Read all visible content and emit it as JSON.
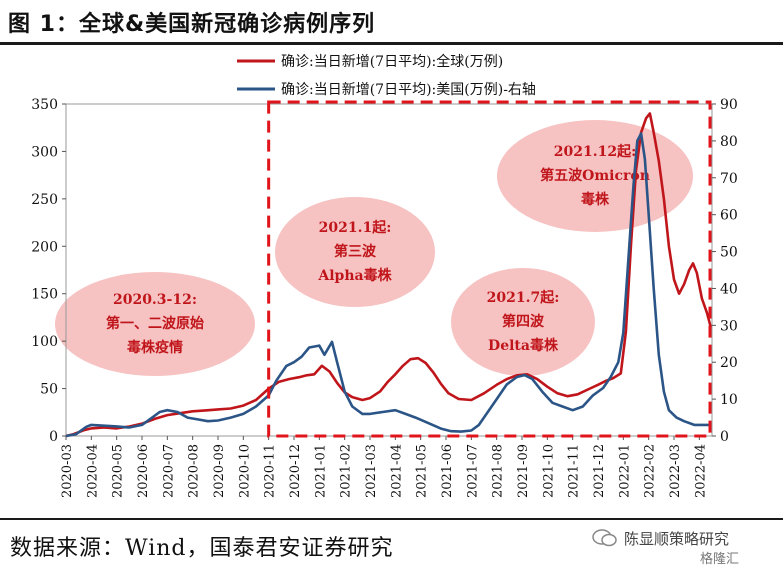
{
  "figure": {
    "title": "图 1：全球&美国新冠确诊病例序列",
    "source": "数据来源：Wind，国泰君安证券研究",
    "watermark": "陈显顺策略研究",
    "watermark_sub": "格隆汇"
  },
  "colors": {
    "global": "#c0161b",
    "us": "#2b5587",
    "annotation_fill": "#f4b7b7",
    "annotation_text": "#c0161b",
    "dashed_box": "#e0141a"
  },
  "chart_data": {
    "type": "line",
    "x_ticks": [
      "2020-03",
      "2020-04",
      "2020-05",
      "2020-06",
      "2020-07",
      "2020-08",
      "2020-09",
      "2020-10",
      "2020-11",
      "2020-12",
      "2021-01",
      "2021-02",
      "2021-03",
      "2021-04",
      "2021-05",
      "2021-06",
      "2021-07",
      "2021-08",
      "2021-09",
      "2021-10",
      "2021-11",
      "2021-12",
      "2022-01",
      "2022-02",
      "2022-03",
      "2022-04"
    ],
    "y_left": {
      "min": 0,
      "max": 350,
      "ticks": [
        "0",
        "50",
        "100",
        "150",
        "200",
        "250",
        "300",
        "350"
      ]
    },
    "y_right": {
      "min": 0,
      "max": 90,
      "ticks": [
        "0",
        "10",
        "20",
        "30",
        "40",
        "50",
        "60",
        "70",
        "80",
        "90"
      ]
    },
    "legend": {
      "position": "top-right"
    },
    "series": [
      {
        "name": "确诊:当日新增(7日平均):全球(万例)",
        "axis": "left",
        "points": [
          [
            0,
            0
          ],
          [
            0.3,
            2
          ],
          [
            0.7,
            6
          ],
          [
            1,
            8
          ],
          [
            1.5,
            9
          ],
          [
            2,
            8
          ],
          [
            2.5,
            10
          ],
          [
            3,
            13
          ],
          [
            3.5,
            18
          ],
          [
            4,
            22
          ],
          [
            4.5,
            24
          ],
          [
            5,
            26
          ],
          [
            5.5,
            27
          ],
          [
            6,
            28
          ],
          [
            6.5,
            29
          ],
          [
            7,
            32
          ],
          [
            7.5,
            38
          ],
          [
            8,
            50
          ],
          [
            8.4,
            57
          ],
          [
            8.8,
            60
          ],
          [
            9.2,
            62
          ],
          [
            9.5,
            64
          ],
          [
            9.8,
            65
          ],
          [
            10.1,
            74
          ],
          [
            10.4,
            68
          ],
          [
            10.7,
            56
          ],
          [
            11,
            46
          ],
          [
            11.3,
            41
          ],
          [
            11.7,
            38
          ],
          [
            12,
            40
          ],
          [
            12.4,
            47
          ],
          [
            12.7,
            57
          ],
          [
            13,
            65
          ],
          [
            13.3,
            74
          ],
          [
            13.6,
            81
          ],
          [
            13.9,
            82
          ],
          [
            14.2,
            77
          ],
          [
            14.5,
            67
          ],
          [
            14.8,
            55
          ],
          [
            15.1,
            45
          ],
          [
            15.5,
            39
          ],
          [
            16,
            38
          ],
          [
            16.5,
            45
          ],
          [
            17,
            54
          ],
          [
            17.4,
            60
          ],
          [
            17.8,
            64
          ],
          [
            18.2,
            65
          ],
          [
            18.6,
            60
          ],
          [
            19,
            52
          ],
          [
            19.4,
            45
          ],
          [
            19.8,
            42
          ],
          [
            20.2,
            44
          ],
          [
            20.6,
            49
          ],
          [
            21,
            54
          ],
          [
            21.3,
            58
          ],
          [
            21.6,
            61
          ],
          [
            21.9,
            66
          ],
          [
            22.1,
            110
          ],
          [
            22.3,
            200
          ],
          [
            22.5,
            280
          ],
          [
            22.7,
            320
          ],
          [
            22.9,
            335
          ],
          [
            23.05,
            340
          ],
          [
            23.2,
            320
          ],
          [
            23.4,
            290
          ],
          [
            23.6,
            250
          ],
          [
            23.8,
            200
          ],
          [
            24,
            165
          ],
          [
            24.2,
            150
          ],
          [
            24.4,
            160
          ],
          [
            24.6,
            175
          ],
          [
            24.75,
            182
          ],
          [
            24.9,
            172
          ],
          [
            25.1,
            145
          ],
          [
            25.3,
            130
          ],
          [
            25.45,
            115
          ]
        ]
      },
      {
        "name": "确诊:当日新增(7日平均):美国(万例)-右轴",
        "axis": "right",
        "points": [
          [
            0,
            0
          ],
          [
            0.4,
            0.5
          ],
          [
            0.8,
            2.5
          ],
          [
            1,
            3
          ],
          [
            1.5,
            2.8
          ],
          [
            2,
            2.6
          ],
          [
            2.5,
            2.3
          ],
          [
            3,
            3
          ],
          [
            3.3,
            4.5
          ],
          [
            3.7,
            6.5
          ],
          [
            4,
            7
          ],
          [
            4.4,
            6.5
          ],
          [
            4.8,
            5
          ],
          [
            5.2,
            4.5
          ],
          [
            5.6,
            4
          ],
          [
            6,
            4.2
          ],
          [
            6.5,
            5
          ],
          [
            7,
            6
          ],
          [
            7.5,
            8
          ],
          [
            8,
            11
          ],
          [
            8.3,
            15
          ],
          [
            8.7,
            19
          ],
          [
            9,
            20
          ],
          [
            9.3,
            21.5
          ],
          [
            9.6,
            24
          ],
          [
            10,
            24.5
          ],
          [
            10.2,
            22
          ],
          [
            10.5,
            25.5
          ],
          [
            10.7,
            20
          ],
          [
            11,
            12
          ],
          [
            11.3,
            8
          ],
          [
            11.7,
            6
          ],
          [
            12,
            6
          ],
          [
            12.5,
            6.5
          ],
          [
            13,
            7
          ],
          [
            13.4,
            6
          ],
          [
            13.8,
            5
          ],
          [
            14.3,
            3.5
          ],
          [
            14.8,
            2
          ],
          [
            15.2,
            1.3
          ],
          [
            15.6,
            1.2
          ],
          [
            16,
            1.5
          ],
          [
            16.3,
            3
          ],
          [
            16.6,
            6
          ],
          [
            17,
            10
          ],
          [
            17.4,
            14
          ],
          [
            17.8,
            16
          ],
          [
            18.1,
            16.5
          ],
          [
            18.4,
            15.5
          ],
          [
            18.8,
            12
          ],
          [
            19.2,
            9
          ],
          [
            19.6,
            8
          ],
          [
            20,
            7
          ],
          [
            20.4,
            8
          ],
          [
            20.8,
            11
          ],
          [
            21.2,
            13
          ],
          [
            21.5,
            16
          ],
          [
            21.8,
            20
          ],
          [
            22.0,
            28
          ],
          [
            22.2,
            48
          ],
          [
            22.4,
            68
          ],
          [
            22.55,
            80
          ],
          [
            22.7,
            82
          ],
          [
            22.85,
            75
          ],
          [
            23.0,
            60
          ],
          [
            23.2,
            40
          ],
          [
            23.4,
            22
          ],
          [
            23.6,
            12
          ],
          [
            23.8,
            7
          ],
          [
            24.1,
            5
          ],
          [
            24.4,
            4
          ],
          [
            24.8,
            3
          ],
          [
            25.2,
            3
          ],
          [
            25.45,
            3
          ]
        ]
      }
    ],
    "annotations": [
      {
        "lines": [
          "2020.3-12:",
          "第一、二波原始",
          "毒株疫情"
        ]
      },
      {
        "lines": [
          "2021.1起:",
          "第三波",
          "Alpha毒株"
        ]
      },
      {
        "lines": [
          "2021.7起:",
          "第四波",
          "Delta毒株"
        ]
      },
      {
        "lines": [
          "2021.12起:",
          "第五波Omicron",
          "毒株"
        ]
      }
    ]
  }
}
